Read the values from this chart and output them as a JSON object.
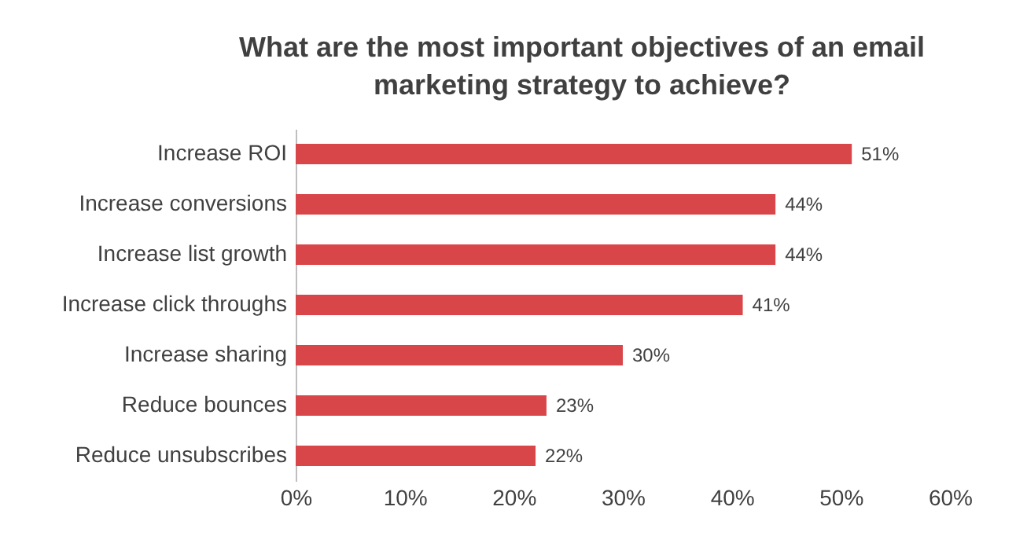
{
  "chart_data": {
    "type": "bar",
    "orientation": "horizontal",
    "title": "What are the most important objectives of an email marketing strategy to achieve?",
    "categories": [
      "Increase ROI",
      "Increase conversions",
      "Increase list growth",
      "Increase click throughs",
      "Increase sharing",
      "Reduce bounces",
      "Reduce unsubscribes"
    ],
    "values": [
      51,
      44,
      44,
      41,
      30,
      23,
      22
    ],
    "value_labels": [
      "51%",
      "44%",
      "44%",
      "41%",
      "30%",
      "23%",
      "22%"
    ],
    "color": "#d9464a",
    "xlim": [
      0,
      60
    ],
    "xticks": [
      {
        "value": 0,
        "label": "0%"
      },
      {
        "value": 10,
        "label": "10%"
      },
      {
        "value": 20,
        "label": "20%"
      },
      {
        "value": 30,
        "label": "30%"
      },
      {
        "value": 40,
        "label": "40%"
      },
      {
        "value": 50,
        "label": "50%"
      },
      {
        "value": 60,
        "label": "60%"
      }
    ],
    "grid": false
  }
}
